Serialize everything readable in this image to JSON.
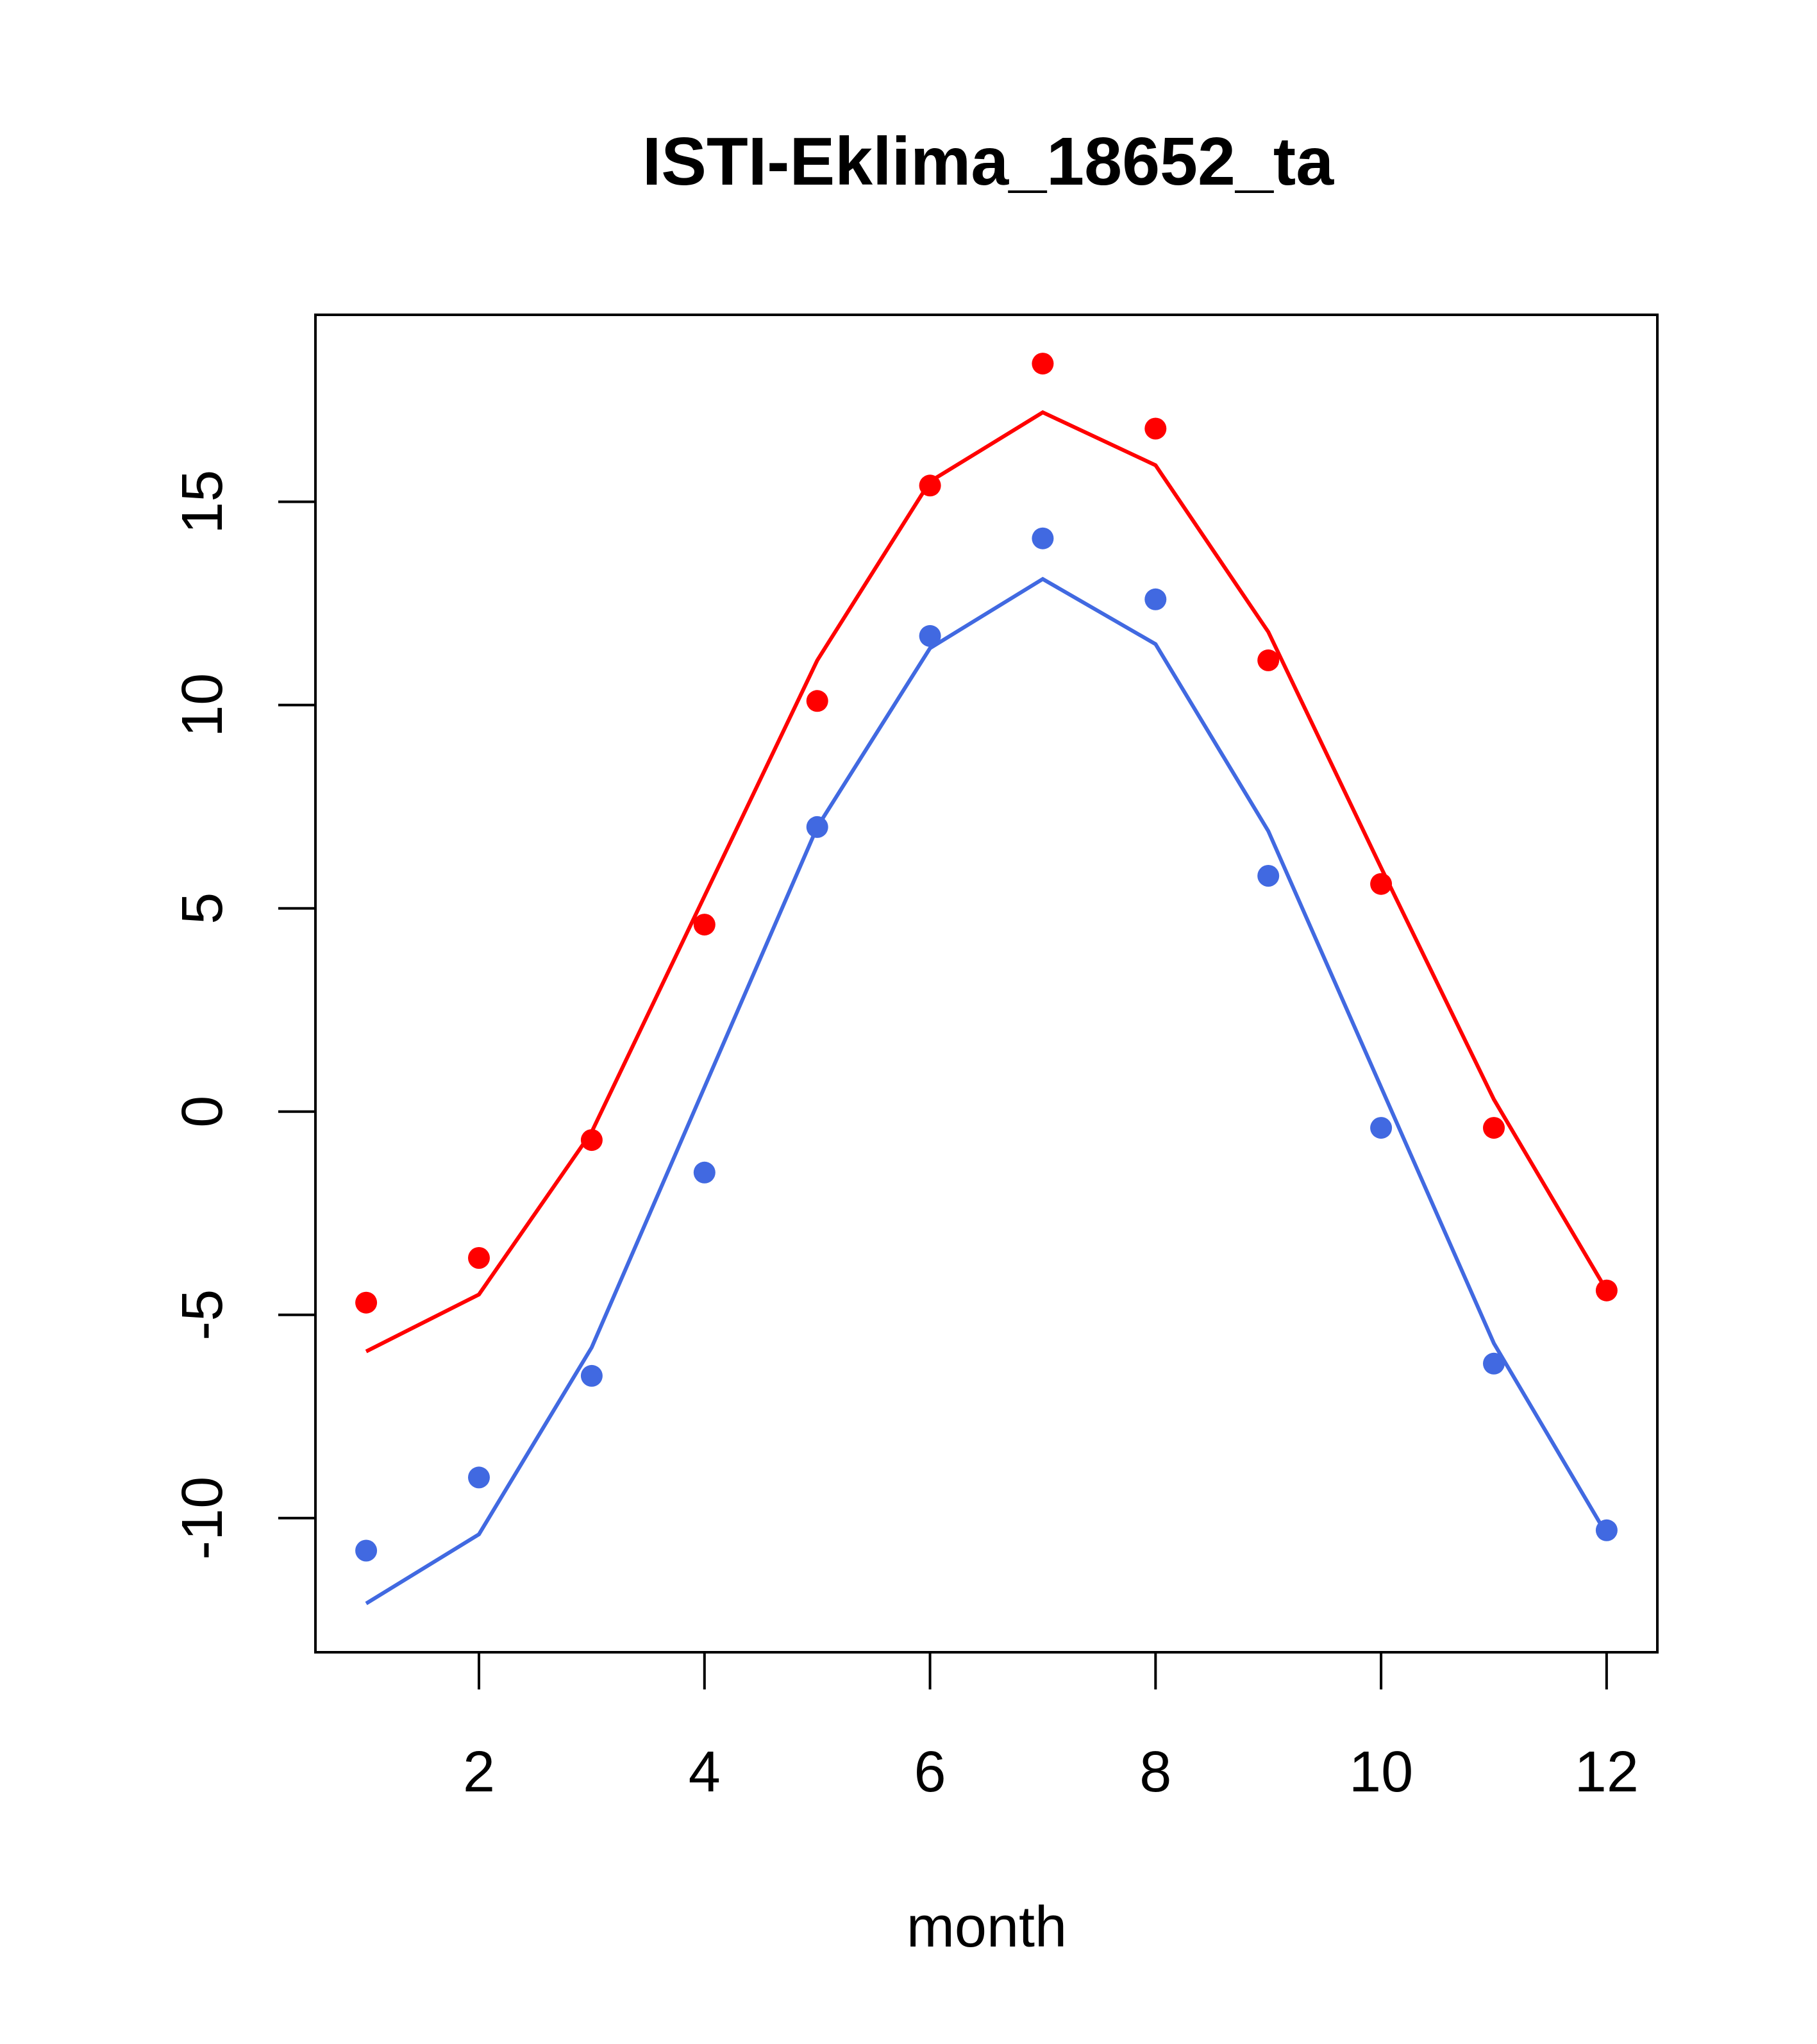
{
  "chart_data": {
    "type": "line",
    "title": "ISTI-Eklima_18652_ta",
    "xlabel": "month",
    "ylabel": "",
    "xlim": [
      0.55,
      12.45
    ],
    "ylim": [
      -13.3,
      19.6
    ],
    "xticks": [
      2,
      4,
      6,
      8,
      10,
      12
    ],
    "yticks": [
      -10,
      -5,
      0,
      5,
      10,
      15
    ],
    "grid": false,
    "legend": "none",
    "x": [
      1,
      2,
      3,
      4,
      5,
      6,
      7,
      8,
      9,
      10,
      11,
      12
    ],
    "series": [
      {
        "color": "#ff0000",
        "line": [
          -5.9,
          -4.5,
          -0.5,
          5.3,
          11.1,
          15.5,
          17.2,
          15.9,
          11.8,
          6.0,
          0.3,
          -4.4
        ],
        "points": [
          -4.7,
          -3.6,
          -0.7,
          4.6,
          10.1,
          15.4,
          18.4,
          16.8,
          11.1,
          5.6,
          -0.4,
          -4.4
        ]
      },
      {
        "color": "#4169e1",
        "line": [
          -12.1,
          -10.4,
          -5.8,
          0.6,
          7.0,
          11.4,
          13.1,
          11.5,
          6.9,
          0.6,
          -5.7,
          -10.4
        ],
        "points": [
          -10.8,
          -9.0,
          -6.5,
          -1.5,
          7.0,
          11.7,
          14.1,
          12.6,
          5.8,
          -0.4,
          -6.2,
          -10.3
        ]
      }
    ]
  }
}
